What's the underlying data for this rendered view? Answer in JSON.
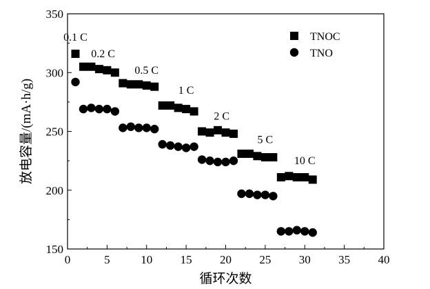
{
  "chart_data": {
    "type": "scatter",
    "xlabel": "循环次数",
    "ylabel": "放电容量/(mA·h/g)",
    "xlim": [
      0,
      40
    ],
    "ylim": [
      150,
      350
    ],
    "xticks": [
      0,
      5,
      10,
      15,
      20,
      25,
      30,
      35,
      40
    ],
    "yticks": [
      150,
      200,
      250,
      300,
      350
    ],
    "grid": false,
    "legend_position": "top-right",
    "series": [
      {
        "name": "TNOC",
        "marker": "square",
        "color": "#000000",
        "x": [
          1,
          2,
          3,
          4,
          5,
          6,
          7,
          8,
          9,
          10,
          11,
          12,
          13,
          14,
          15,
          16,
          17,
          18,
          19,
          20,
          21,
          22,
          23,
          24,
          25,
          26,
          27,
          28,
          29,
          30,
          31
        ],
        "y": [
          316,
          305,
          305,
          303,
          302,
          300,
          291,
          290,
          290,
          289,
          288,
          272,
          272,
          270,
          269,
          267,
          250,
          249,
          251,
          249,
          248,
          231,
          231,
          229,
          228,
          228,
          211,
          212,
          211,
          211,
          209
        ]
      },
      {
        "name": "TNO",
        "marker": "circle",
        "color": "#000000",
        "x": [
          1,
          2,
          3,
          4,
          5,
          6,
          7,
          8,
          9,
          10,
          11,
          12,
          13,
          14,
          15,
          16,
          17,
          18,
          19,
          20,
          21,
          22,
          23,
          24,
          25,
          26,
          27,
          28,
          29,
          30,
          31
        ],
        "y": [
          292,
          269,
          270,
          269,
          269,
          267,
          253,
          254,
          253,
          253,
          252,
          239,
          238,
          237,
          236,
          237,
          226,
          225,
          224,
          224,
          225,
          197,
          197,
          196,
          196,
          195,
          165,
          165,
          166,
          165,
          164
        ]
      }
    ],
    "annotations": [
      {
        "text": "0.1 C",
        "x": 1,
        "y": 327
      },
      {
        "text": "0.2 C",
        "x": 4.5,
        "y": 313
      },
      {
        "text": "0.5 C",
        "x": 10,
        "y": 299
      },
      {
        "text": "1 C",
        "x": 15,
        "y": 282
      },
      {
        "text": "2 C",
        "x": 19.5,
        "y": 260
      },
      {
        "text": "5 C",
        "x": 25,
        "y": 240
      },
      {
        "text": "10 C",
        "x": 30,
        "y": 222
      }
    ]
  }
}
